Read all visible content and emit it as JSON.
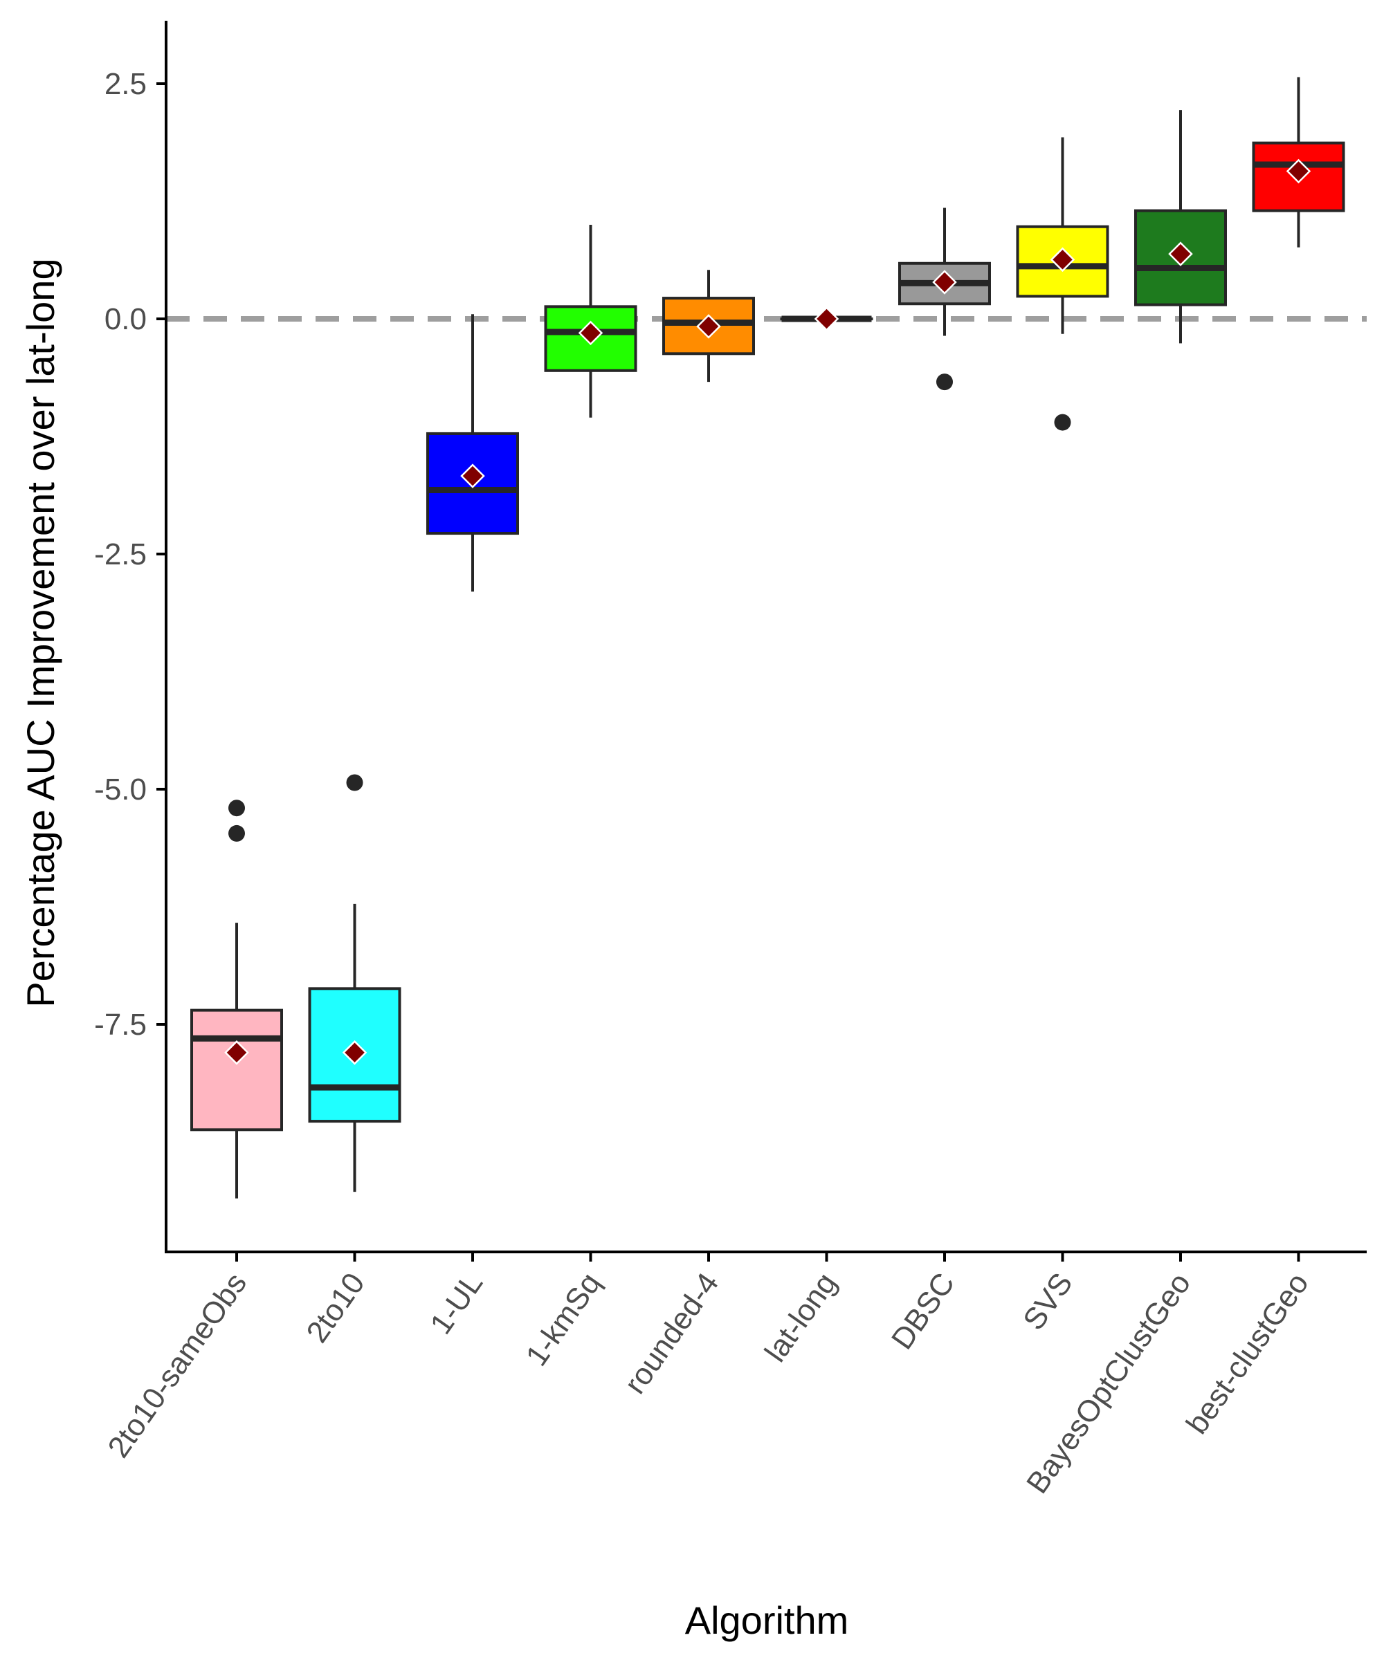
{
  "chart_data": {
    "type": "boxplot",
    "xlabel": "Algorithm",
    "ylabel": "Percentage AUC Improvement over lat-long",
    "ylim": [
      -9.8,
      3.2
    ],
    "yticks": [
      2.5,
      0.0,
      -2.5,
      -5.0,
      -7.5
    ],
    "ytick_labels": [
      "2.5",
      "0.0",
      "-2.5",
      "-5.0",
      "-7.5"
    ],
    "reference_line": 0.0,
    "grid": false,
    "legend": "none",
    "categories": [
      "2to10-sameObs",
      "2to10",
      "1-UL",
      "1-kmSq",
      "rounded-4",
      "lat-long",
      "DBSC",
      "SVS",
      "BayesOptClustGeo",
      "best-clustGeo"
    ],
    "boxes": [
      {
        "name": "2to10-sameObs",
        "color": "#FFB6C1",
        "whisker_low": -9.35,
        "q1": -8.62,
        "median": -7.65,
        "q3": -7.35,
        "whisker_high": -6.42,
        "mean": -7.8,
        "outliers": [
          -5.2,
          -5.47
        ]
      },
      {
        "name": "2to10",
        "color": "#1FFFFF",
        "whisker_low": -9.28,
        "q1": -8.53,
        "median": -8.17,
        "q3": -7.12,
        "whisker_high": -6.22,
        "mean": -7.8,
        "outliers": [
          -4.93
        ]
      },
      {
        "name": "1-UL",
        "color": "#0000FF",
        "whisker_low": -2.9,
        "q1": -2.28,
        "median": -1.82,
        "q3": -1.22,
        "whisker_high": 0.05,
        "mean": -1.67,
        "outliers": []
      },
      {
        "name": "1-kmSq",
        "color": "#22FF00",
        "whisker_low": -1.05,
        "q1": -0.55,
        "median": -0.14,
        "q3": 0.13,
        "whisker_high": 1.0,
        "mean": -0.15,
        "outliers": []
      },
      {
        "name": "rounded-4",
        "color": "#FF8C00",
        "whisker_low": -0.67,
        "q1": -0.37,
        "median": -0.04,
        "q3": 0.22,
        "whisker_high": 0.52,
        "mean": -0.08,
        "outliers": []
      },
      {
        "name": "lat-long",
        "color": "#000000",
        "whisker_low": 0.0,
        "q1": 0.0,
        "median": 0.0,
        "q3": 0.0,
        "whisker_high": 0.0,
        "mean": 0.0,
        "outliers": []
      },
      {
        "name": "DBSC",
        "color": "#999999",
        "whisker_low": -0.18,
        "q1": 0.16,
        "median": 0.38,
        "q3": 0.59,
        "whisker_high": 1.18,
        "mean": 0.39,
        "outliers": [
          -0.67
        ]
      },
      {
        "name": "SVS",
        "color": "#FFFF00",
        "whisker_low": -0.16,
        "q1": 0.24,
        "median": 0.56,
        "q3": 0.98,
        "whisker_high": 1.93,
        "mean": 0.63,
        "outliers": [
          -1.1
        ]
      },
      {
        "name": "BayesOptClustGeo",
        "color": "#1E7B1E",
        "whisker_low": -0.26,
        "q1": 0.15,
        "median": 0.54,
        "q3": 1.15,
        "whisker_high": 2.22,
        "mean": 0.69,
        "outliers": []
      },
      {
        "name": "best-clustGeo",
        "color": "#FF0000",
        "whisker_low": 0.76,
        "q1": 1.15,
        "median": 1.64,
        "q3": 1.87,
        "whisker_high": 2.57,
        "mean": 1.57,
        "outliers": []
      }
    ],
    "colors": {
      "box_stroke": "#262626",
      "mean_marker": "#800000",
      "mean_marker_stroke": "#ffffff",
      "outlier": "#262626",
      "reference_line": "#9E9E9E",
      "axis": "#000000"
    }
  }
}
